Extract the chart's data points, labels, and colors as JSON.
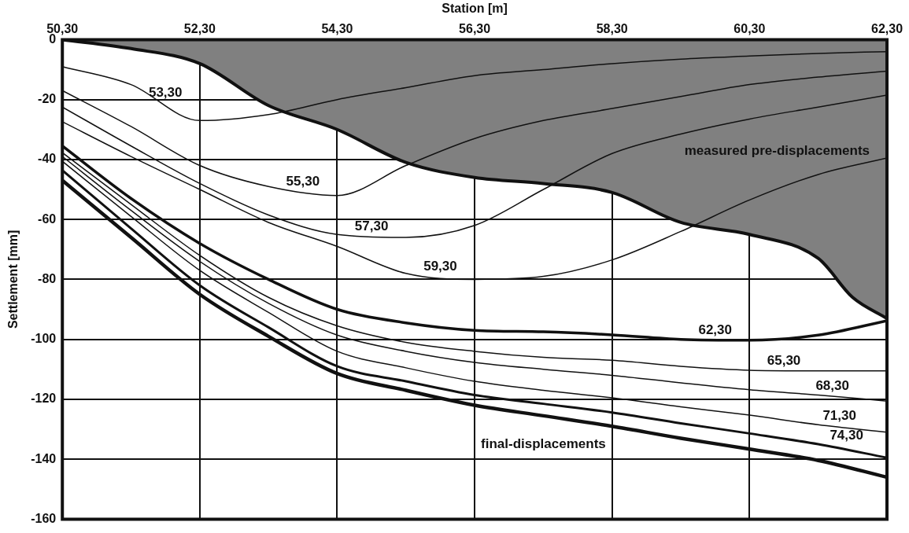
{
  "chart_data": {
    "type": "line",
    "xlabel": "Station [m]",
    "ylabel": "Settlement [mm]",
    "x": [
      50.3,
      51.3,
      52.3,
      53.3,
      54.3,
      55.3,
      56.3,
      57.3,
      58.3,
      59.3,
      60.3,
      61.3,
      62.3
    ],
    "xlim": [
      50.3,
      62.3
    ],
    "xticks": [
      {
        "value": 50.3,
        "label": "50,30"
      },
      {
        "value": 52.3,
        "label": "52,30"
      },
      {
        "value": 54.3,
        "label": "54,30"
      },
      {
        "value": 56.3,
        "label": "56,30"
      },
      {
        "value": 58.3,
        "label": "58,30"
      },
      {
        "value": 60.3,
        "label": "60,30"
      },
      {
        "value": 62.3,
        "label": "62,30"
      }
    ],
    "ylim": [
      -160,
      0
    ],
    "yticks": [
      0,
      -20,
      -40,
      -60,
      -80,
      -100,
      -120,
      -140,
      -160
    ],
    "grid": true,
    "legend": false,
    "marker": "none",
    "line_style": "solid",
    "series": [
      {
        "name": "measured pre-displacements",
        "type": "area",
        "color": "#808080",
        "x": [
          50.3,
          51.3,
          52.3,
          53.3,
          54.3,
          55.3,
          56.3,
          57.3,
          58.3,
          59.3,
          60.3,
          61.3,
          61.8,
          62.3
        ],
        "values": [
          0,
          -3,
          -8,
          -22,
          -30,
          -41,
          -46,
          -48,
          -51,
          -61,
          -65,
          -73,
          -86,
          -93
        ]
      },
      {
        "name": "53,30",
        "color": "#111111",
        "values": [
          -9,
          -15,
          -27,
          -25,
          -20,
          -16,
          -12,
          -10,
          -8,
          -6.5,
          -5.5,
          -4.6,
          -4
        ]
      },
      {
        "name": "55,30",
        "color": "#111111",
        "values": [
          -17,
          -29,
          -42,
          -49,
          -52,
          -42,
          -33,
          -27,
          -23,
          -19,
          -15,
          -12.5,
          -10.5
        ]
      },
      {
        "name": "57,30",
        "color": "#111111",
        "values": [
          -22.5,
          -35.5,
          -48,
          -58.5,
          -65,
          -66,
          -62,
          -50,
          -38,
          -31.5,
          -26.5,
          -22.5,
          -18.5
        ]
      },
      {
        "name": "59,30",
        "color": "#111111",
        "values": [
          -27.4,
          -39,
          -50,
          -61,
          -69,
          -78,
          -80,
          -79,
          -73.5,
          -64,
          -53.5,
          -45,
          -39.5
        ]
      },
      {
        "name": "62,30",
        "color": "#111111",
        "values": [
          -35.5,
          -53,
          -68,
          -80,
          -90,
          -94.5,
          -97,
          -97.5,
          -98.5,
          -100,
          -100.3,
          -98.6,
          -93.8
        ]
      },
      {
        "name": "65,30",
        "color": "#111111",
        "values": [
          -37.7,
          -55,
          -72,
          -86,
          -95.5,
          -101,
          -104,
          -106,
          -107,
          -109,
          -110.3,
          -110.5,
          -110.5
        ]
      },
      {
        "name": "68,30",
        "color": "#111111",
        "values": [
          -39,
          -57,
          -74,
          -88,
          -98.6,
          -104,
          -107.7,
          -110,
          -112,
          -114.5,
          -116.8,
          -118.6,
          -120.6
        ]
      },
      {
        "name": "71,30",
        "color": "#111111",
        "values": [
          -40.6,
          -59,
          -77,
          -91,
          -104,
          -109.5,
          -114,
          -117,
          -119.5,
          -122.5,
          -125.3,
          -128.5,
          -131
        ]
      },
      {
        "name": "74,30",
        "color": "#111111",
        "values": [
          -43.6,
          -63,
          -82,
          -96,
          -109,
          -114,
          -118.6,
          -121.5,
          -124.4,
          -128,
          -131.4,
          -135,
          -139.5
        ]
      },
      {
        "name": "final-displacements",
        "color": "#111111",
        "values": [
          -47,
          -66,
          -85,
          -99,
          -111.4,
          -117,
          -122,
          -125.5,
          -129,
          -133,
          -136.6,
          -140.4,
          -146
        ]
      }
    ]
  }
}
